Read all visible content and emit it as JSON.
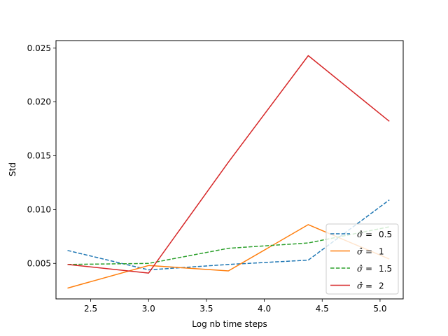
{
  "chart_data": {
    "type": "line",
    "title": "",
    "xlabel": "Log nb time  steps",
    "ylabel": "Std",
    "xlim": [
      2.2,
      5.2
    ],
    "ylim": [
      0.0017,
      0.0257
    ],
    "xticks": [
      2.5,
      3.0,
      3.5,
      4.0,
      4.5,
      5.0
    ],
    "xtick_labels": [
      "2.5",
      "3.0",
      "3.5",
      "4.0",
      "4.5",
      "5.0"
    ],
    "yticks": [
      0.005,
      0.01,
      0.015,
      0.02,
      0.025
    ],
    "ytick_labels": [
      "0.005",
      "0.010",
      "0.015",
      "0.020",
      "0.025"
    ],
    "grid": false,
    "legend_position": "lower-right",
    "x": [
      2.3,
      3.0,
      3.69,
      4.38,
      5.08
    ],
    "series": [
      {
        "name": "0.5",
        "legend_symbol": "σ̂ =",
        "color": "#1f77b4",
        "dash": "dashed",
        "values": [
          0.0062,
          0.0044,
          0.0049,
          0.0053,
          0.0109
        ]
      },
      {
        "name": "1",
        "legend_symbol": "σ̂ =",
        "color": "#ff7f0e",
        "dash": "solid",
        "values": [
          0.0027,
          0.0048,
          0.0043,
          0.0086,
          0.0054
        ]
      },
      {
        "name": "1.5",
        "legend_symbol": "σ̂ =",
        "color": "#2ca02c",
        "dash": "dashed",
        "values": [
          0.0049,
          0.005,
          0.0064,
          0.0069,
          0.0084
        ]
      },
      {
        "name": "2",
        "legend_symbol": "σ̂ =",
        "color": "#d62728",
        "dash": "solid",
        "values": [
          0.0049,
          0.0041,
          0.0144,
          0.0243,
          0.0182
        ]
      }
    ]
  }
}
